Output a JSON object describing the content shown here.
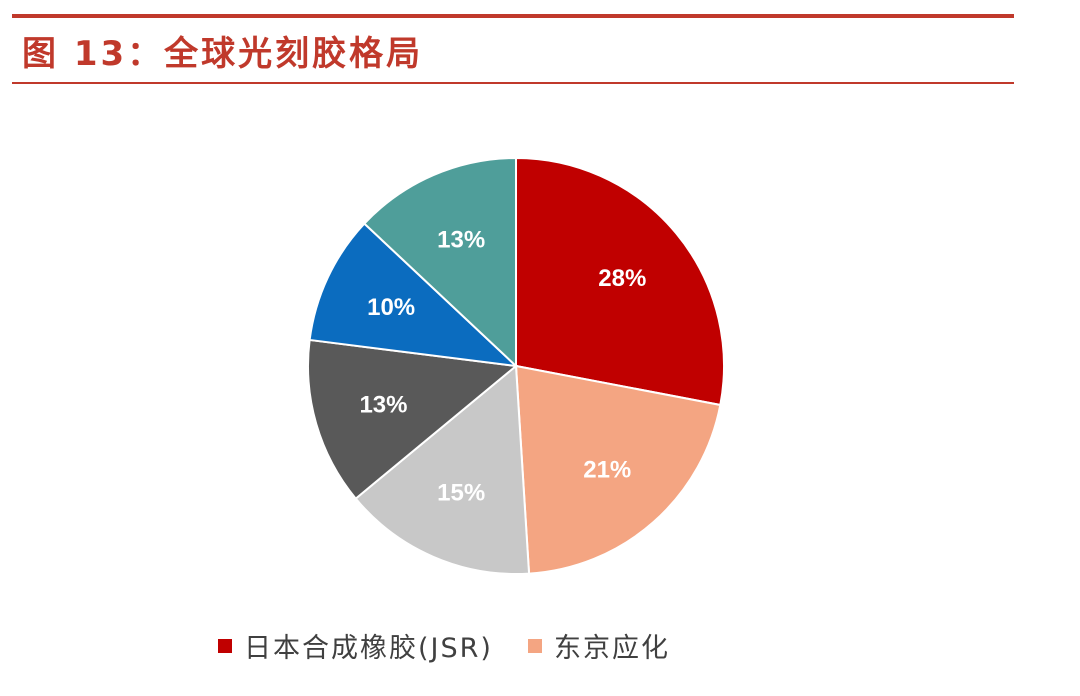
{
  "title": "图 13：全球光刻胶格局",
  "chart_data": {
    "type": "pie",
    "title": "",
    "slices": [
      {
        "label": "日本合成橡胶(JSR)",
        "value": 28,
        "display": "28%",
        "color": "#c00000"
      },
      {
        "label": "东京应化",
        "value": 21,
        "display": "21%",
        "color": "#f4a582"
      },
      {
        "label": "",
        "value": 15,
        "display": "15%",
        "color": "#c8c8c8"
      },
      {
        "label": "",
        "value": 13,
        "display": "13%",
        "color": "#595959"
      },
      {
        "label": "",
        "value": 10,
        "display": "10%",
        "color": "#0b6cbf"
      },
      {
        "label": "",
        "value": 13,
        "display": "13%",
        "color": "#4f9e9a"
      }
    ],
    "start_angle_deg": 0,
    "direction": "clockwise",
    "legend_position": "bottom"
  },
  "legend": {
    "items": [
      {
        "label": "日本合成橡胶(JSR)",
        "color": "#c00000"
      },
      {
        "label": "东京应化",
        "color": "#f4a582"
      }
    ]
  }
}
